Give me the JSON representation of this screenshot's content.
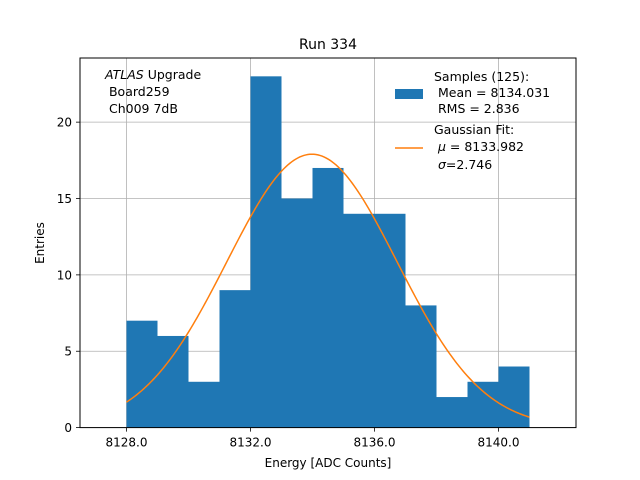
{
  "chart_data": {
    "type": "bar",
    "title": "Run 334",
    "xlabel": "Energy [ADC Counts]",
    "ylabel": "Entries",
    "xlim": [
      8126.5,
      8142.5
    ],
    "ylim": [
      0,
      24.2
    ],
    "grid": true,
    "xticks": [
      8128,
      8132,
      8136,
      8140
    ],
    "xtick_labels": [
      "8128.0",
      "8132.0",
      "8136.0",
      "8140.0"
    ],
    "yticks": [
      0,
      5,
      10,
      15,
      20
    ],
    "ytick_labels": [
      "0",
      "5",
      "10",
      "15",
      "20"
    ],
    "bin_edges": [
      8128,
      8129,
      8130,
      8131,
      8132,
      8133,
      8134,
      8135,
      8136,
      8137,
      8138,
      8139,
      8140,
      8141
    ],
    "values": [
      7,
      6,
      3,
      9,
      23,
      15,
      17,
      14,
      14,
      8,
      2,
      3,
      4
    ],
    "bar_color": "#1f77b4",
    "fit": {
      "type": "gaussian",
      "mu": 8133.982,
      "sigma": 2.746,
      "amplitude": 17.9,
      "x_range": [
        8128,
        8141
      ],
      "color": "#ff7f0e"
    },
    "annotation": {
      "italic": "ATLAS",
      "line1_rest": " Upgrade",
      "line2": " Board259",
      "line3": " Ch009 7dB"
    },
    "legend": {
      "placement": "top-right",
      "samples": {
        "line1": "Samples (125):",
        "line2": " Mean = 8134.031",
        "line3": " RMS = 2.836"
      },
      "fit": {
        "line1": "Gaussian Fit:",
        "mu_sym": "μ",
        "mu_rest": " = 8133.982",
        "sigma_sym": "σ",
        "sigma_rest": "=2.746"
      }
    }
  }
}
